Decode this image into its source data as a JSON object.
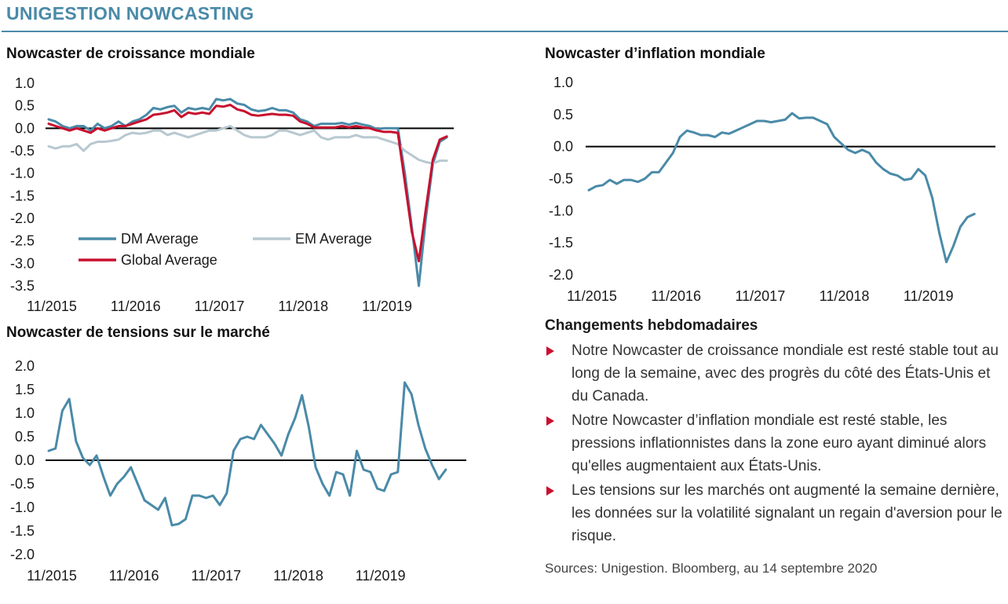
{
  "header": {
    "title": "UNIGESTION NOWCASTING"
  },
  "colors": {
    "dm": "#4a8aa8",
    "em": "#b8c8d0",
    "global": "#c8102e",
    "bullet": "#c8102e"
  },
  "chart_data": [
    {
      "id": "growth",
      "type": "line",
      "title": "Nowcaster de croissance mondiale",
      "ylim": [
        -3.5,
        1.0
      ],
      "y_ticks": [
        "1.0",
        "0.5",
        "0.0",
        "-0.5",
        "-1.0",
        "-1.5",
        "-2.0",
        "-2.5",
        "-3.0",
        "-3.5"
      ],
      "x_ticks": [
        "11/2015",
        "11/2016",
        "11/2017",
        "11/2018",
        "11/2019"
      ],
      "x_tick_pos": [
        0,
        12,
        24,
        36,
        48
      ],
      "x_range": [
        0,
        58
      ],
      "legend_position": "lower-left",
      "series": [
        {
          "name": "DM Average",
          "color": "#4a8aa8",
          "values": [
            0.2,
            0.15,
            0.05,
            0.0,
            0.05,
            0.05,
            -0.05,
            0.1,
            0.0,
            0.05,
            0.15,
            0.05,
            0.15,
            0.2,
            0.3,
            0.45,
            0.42,
            0.47,
            0.5,
            0.35,
            0.45,
            0.42,
            0.45,
            0.42,
            0.65,
            0.62,
            0.65,
            0.55,
            0.52,
            0.42,
            0.38,
            0.4,
            0.45,
            0.4,
            0.4,
            0.35,
            0.2,
            0.15,
            0.05,
            0.1,
            0.1,
            0.1,
            0.12,
            0.08,
            0.12,
            0.08,
            0.05,
            -0.02,
            0.0,
            0.0,
            0.0,
            -1.0,
            -2.2,
            -3.5,
            -2.0,
            -0.8,
            -0.3,
            -0.2
          ]
        },
        {
          "name": "EM Average",
          "color": "#b8c8d0",
          "values": [
            -0.4,
            -0.45,
            -0.4,
            -0.4,
            -0.35,
            -0.5,
            -0.35,
            -0.3,
            -0.3,
            -0.28,
            -0.25,
            -0.15,
            -0.1,
            -0.12,
            -0.1,
            -0.05,
            -0.05,
            -0.15,
            -0.1,
            -0.15,
            -0.2,
            -0.15,
            -0.1,
            -0.05,
            -0.05,
            0.0,
            0.05,
            -0.05,
            -0.15,
            -0.2,
            -0.2,
            -0.2,
            -0.15,
            -0.05,
            -0.05,
            -0.1,
            -0.15,
            -0.1,
            -0.05,
            -0.2,
            -0.25,
            -0.2,
            -0.2,
            -0.2,
            -0.15,
            -0.2,
            -0.2,
            -0.2,
            -0.25,
            -0.3,
            -0.35,
            -0.5,
            -0.6,
            -0.7,
            -0.75,
            -0.78,
            -0.72,
            -0.72
          ]
        },
        {
          "name": "Global Average",
          "color": "#c8102e",
          "values": [
            0.1,
            0.05,
            0.0,
            -0.05,
            0.0,
            -0.05,
            -0.1,
            0.0,
            -0.05,
            0.0,
            0.05,
            0.05,
            0.1,
            0.15,
            0.2,
            0.3,
            0.32,
            0.35,
            0.4,
            0.25,
            0.35,
            0.32,
            0.35,
            0.32,
            0.5,
            0.48,
            0.52,
            0.42,
            0.38,
            0.3,
            0.28,
            0.3,
            0.32,
            0.3,
            0.3,
            0.28,
            0.15,
            0.1,
            0.02,
            0.02,
            0.02,
            0.02,
            0.05,
            0.02,
            0.05,
            0.02,
            0.0,
            -0.05,
            -0.08,
            -0.08,
            -0.1,
            -1.2,
            -2.3,
            -2.95,
            -1.8,
            -0.7,
            -0.25,
            -0.18
          ]
        }
      ]
    },
    {
      "id": "inflation",
      "type": "line",
      "title": "Nowcaster d’inflation mondiale",
      "ylim": [
        -2.0,
        1.0
      ],
      "y_ticks": [
        "1.0",
        "0.5",
        "0.0",
        "-0.5",
        "-1.0",
        "-1.5",
        "-2.0"
      ],
      "x_ticks": [
        "11/2015",
        "11/2016",
        "11/2017",
        "11/2018",
        "11/2019"
      ],
      "x_tick_pos": [
        0,
        12,
        24,
        36,
        48
      ],
      "x_range": [
        0,
        58
      ],
      "series": [
        {
          "name": "",
          "color": "#4a8aa8",
          "values": [
            -0.68,
            -0.62,
            -0.6,
            -0.52,
            -0.58,
            -0.52,
            -0.52,
            -0.55,
            -0.5,
            -0.4,
            -0.4,
            -0.25,
            -0.1,
            0.15,
            0.25,
            0.22,
            0.18,
            0.18,
            0.15,
            0.22,
            0.2,
            0.25,
            0.3,
            0.35,
            0.4,
            0.4,
            0.38,
            0.4,
            0.42,
            0.52,
            0.44,
            0.45,
            0.45,
            0.4,
            0.35,
            0.15,
            0.05,
            -0.05,
            -0.1,
            -0.05,
            -0.1,
            -0.25,
            -0.35,
            -0.42,
            -0.45,
            -0.52,
            -0.5,
            -0.35,
            -0.45,
            -0.8,
            -1.35,
            -1.8,
            -1.55,
            -1.25,
            -1.1,
            -1.05
          ]
        }
      ]
    },
    {
      "id": "tensions",
      "type": "line",
      "title": "Nowcaster de tensions sur le marché",
      "ylim": [
        -2.0,
        2.0
      ],
      "y_ticks": [
        "2.0",
        "1.5",
        "1.0",
        "0.5",
        "0.0",
        "-0.5",
        "-1.0",
        "-1.5",
        "-2.0"
      ],
      "x_ticks": [
        "11/2015",
        "11/2016",
        "11/2017",
        "11/2018",
        "11/2019"
      ],
      "x_tick_pos": [
        0,
        12,
        24,
        36,
        48
      ],
      "x_range": [
        0,
        61
      ],
      "series": [
        {
          "name": "",
          "color": "#4a8aa8",
          "values": [
            0.2,
            0.25,
            1.05,
            1.3,
            0.4,
            0.05,
            -0.1,
            0.1,
            -0.35,
            -0.75,
            -0.5,
            -0.35,
            -0.15,
            -0.5,
            -0.85,
            -0.95,
            -1.05,
            -0.8,
            -1.38,
            -1.35,
            -1.25,
            -0.75,
            -0.75,
            -0.8,
            -0.75,
            -0.95,
            -0.7,
            0.2,
            0.45,
            0.5,
            0.45,
            0.75,
            0.55,
            0.35,
            0.1,
            0.55,
            0.9,
            1.38,
            0.7,
            -0.15,
            -0.5,
            -0.75,
            -0.25,
            -0.3,
            -0.75,
            0.2,
            -0.2,
            -0.25,
            -0.6,
            -0.65,
            -0.3,
            -0.25,
            1.65,
            1.4,
            0.75,
            0.25,
            -0.1,
            -0.4,
            -0.2
          ]
        }
      ]
    }
  ],
  "commentary": {
    "heading": "Changements hebdomadaires",
    "bullets": [
      "Notre Nowcaster de croissance mondiale est resté stable tout au long de la semaine, avec des progrès du côté des États-Unis et du Canada.",
      "Notre Nowcaster d’inflation mondiale est resté stable, les pressions inflationnistes dans la zone euro ayant diminué alors qu'elles augmentaient aux États-Unis.",
      "Les tensions sur les marchés ont augmenté la semaine dernière, les données sur la volatilité signalant un regain d'aversion pour le risque."
    ]
  },
  "sources": "Sources: Unigestion. Bloomberg, au 14 septembre 2020"
}
